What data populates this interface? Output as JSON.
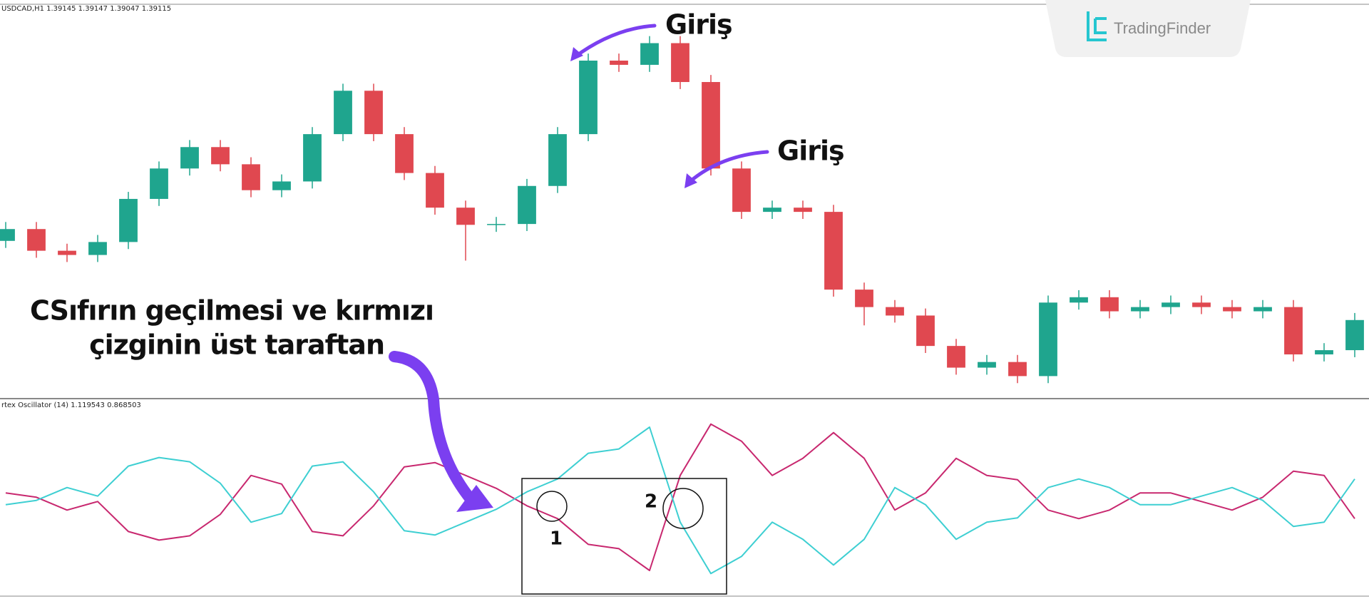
{
  "chart_data": [
    {
      "type": "candlestick",
      "title": "USDCAD,H1 1.39145 1.39147 1.39047 1.39115",
      "open": [
        1.3906,
        1.39102,
        1.39025,
        1.3901,
        1.39056,
        1.39209,
        1.39317,
        1.39393,
        1.39332,
        1.3924,
        1.39271,
        1.39439,
        1.39593,
        1.39439,
        1.39301,
        1.39178,
        1.39117,
        1.3912,
        1.39255,
        1.39439,
        1.397,
        1.39685,
        1.39762,
        1.39624,
        1.39317,
        1.39163,
        1.39178,
        1.39163,
        1.38887,
        1.38825,
        1.38795,
        1.38687,
        1.3861,
        1.3863,
        1.3858,
        1.38841,
        1.3886,
        1.3881,
        1.38825,
        1.38841,
        1.38825,
        1.3881,
        1.38825,
        1.38657,
        1.38672
      ],
      "high": [
        1.39127,
        1.39127,
        1.3905,
        1.39081,
        1.39234,
        1.39342,
        1.39418,
        1.39418,
        1.39357,
        1.39296,
        1.39464,
        1.39618,
        1.39618,
        1.39464,
        1.39326,
        1.39203,
        1.39145,
        1.3928,
        1.39464,
        1.39725,
        1.39725,
        1.39787,
        1.39787,
        1.39649,
        1.39342,
        1.39203,
        1.39203,
        1.39188,
        1.38912,
        1.3885,
        1.3882,
        1.38712,
        1.38655,
        1.38655,
        1.38866,
        1.38885,
        1.38885,
        1.3885,
        1.38866,
        1.38866,
        1.3885,
        1.3885,
        1.3885,
        1.38697,
        1.38804
      ],
      "low": [
        1.39035,
        1.39,
        1.38985,
        1.38985,
        1.39031,
        1.39184,
        1.39292,
        1.39307,
        1.39215,
        1.39215,
        1.39246,
        1.39414,
        1.39414,
        1.39276,
        1.39153,
        1.3899,
        1.39092,
        1.39095,
        1.3923,
        1.39414,
        1.3966,
        1.3966,
        1.39599,
        1.39292,
        1.39138,
        1.39138,
        1.39138,
        1.38862,
        1.3876,
        1.3877,
        1.38662,
        1.38585,
        1.38585,
        1.38555,
        1.38555,
        1.38816,
        1.38785,
        1.38785,
        1.388,
        1.388,
        1.38785,
        1.38785,
        1.38632,
        1.38632,
        1.38647
      ],
      "close": [
        1.39102,
        1.39025,
        1.3901,
        1.39056,
        1.39209,
        1.39317,
        1.39393,
        1.39332,
        1.3924,
        1.39271,
        1.39439,
        1.39593,
        1.39439,
        1.39301,
        1.39178,
        1.39117,
        1.3912,
        1.39255,
        1.39439,
        1.397,
        1.39685,
        1.39762,
        1.39624,
        1.39317,
        1.39163,
        1.39178,
        1.39163,
        1.38887,
        1.38825,
        1.38795,
        1.38687,
        1.3861,
        1.3863,
        1.3858,
        1.38841,
        1.3886,
        1.3881,
        1.38825,
        1.38841,
        1.38825,
        1.3881,
        1.38825,
        1.38657,
        1.38672,
        1.38779
      ],
      "up_color": "#1fa58e",
      "down_color": "#e04850",
      "ylim": [
        1.385,
        1.399
      ]
    },
    {
      "type": "line",
      "title": "rtex Oscillator (14) 1.119543 0.868503",
      "series": [
        {
          "color": "#c8286f",
          "values": [
            1.015,
            1.004,
            0.971,
            0.993,
            0.916,
            0.894,
            0.905,
            0.96,
            1.06,
            1.038,
            0.916,
            0.905,
            0.982,
            1.082,
            1.093,
            1.06,
            1.027,
            0.982,
            0.949,
            0.883,
            0.872,
            0.816,
            1.06,
            1.192,
            1.148,
            1.06,
            1.104,
            1.17,
            1.104,
            0.971,
            1.015,
            1.104,
            1.06,
            1.049,
            0.971,
            0.949,
            0.971,
            1.015,
            1.015,
            0.993,
            0.971,
            1.004,
            1.071,
            1.06,
            0.949
          ]
        },
        {
          "color": "#3ecfd2",
          "values": [
            0.985,
            0.996,
            1.029,
            1.007,
            1.084,
            1.106,
            1.095,
            1.04,
            0.94,
            0.962,
            1.084,
            1.095,
            1.018,
            0.918,
            0.907,
            0.94,
            0.973,
            1.018,
            1.051,
            1.117,
            1.128,
            1.184,
            0.94,
            0.808,
            0.852,
            0.94,
            0.896,
            0.83,
            0.896,
            1.029,
            0.985,
            0.896,
            0.94,
            0.951,
            1.029,
            1.051,
            1.029,
            0.985,
            0.985,
            1.007,
            1.029,
            0.996,
            0.929,
            0.94,
            1.051
          ]
        }
      ],
      "ylim": [
        0.75,
        1.25
      ]
    }
  ],
  "annotations": {
    "entry_1": "Giriş",
    "entry_2": "Giriş",
    "note_line_1": "CSıfırın geçilmesi ve kırmızı",
    "note_line_2": "çizginin üst taraftan",
    "marker_1": "1",
    "marker_2": "2"
  },
  "logo": {
    "text": "TradingFinder"
  }
}
